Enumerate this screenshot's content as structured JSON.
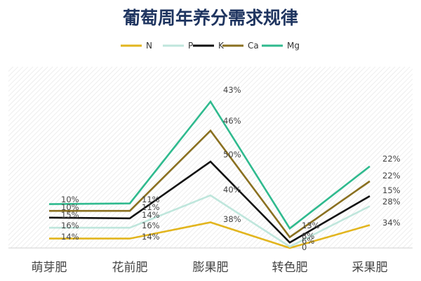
{
  "chart_data": {
    "type": "line",
    "title": "葡萄周年养分需求规律",
    "categories": [
      "萌芽肥",
      "花前肥",
      "膨果肥",
      "转色肥",
      "采果肥"
    ],
    "legend_position": "top",
    "grid": false,
    "series": [
      {
        "name": "N",
        "color": "#e2b51e",
        "values": [
          14,
          14,
          38,
          0,
          34
        ],
        "labels": [
          "14%",
          "14%",
          "38%",
          "0",
          "34%"
        ]
      },
      {
        "name": "P",
        "color": "#bfe6dc",
        "values": [
          16,
          16,
          40,
          2,
          28
        ],
        "labels": [
          "16%",
          "16%",
          "40%",
          "",
          "28%"
        ]
      },
      {
        "name": "K",
        "color": "#111111",
        "values": [
          15,
          14,
          50,
          6,
          15
        ],
        "labels": [
          "15%",
          "14%",
          "50%",
          "6%",
          "15%"
        ]
      },
      {
        "name": "Ca",
        "color": "#8a7020",
        "values": [
          10,
          11,
          46,
          8,
          22
        ],
        "labels": [
          "10%",
          "11%",
          "46%",
          "8%",
          "22%"
        ]
      },
      {
        "name": "Mg",
        "color": "#2fba8e",
        "values": [
          10,
          11,
          43,
          13,
          22
        ],
        "labels": [
          "10%",
          "11%",
          "43%",
          "13%",
          "22%"
        ]
      }
    ]
  }
}
